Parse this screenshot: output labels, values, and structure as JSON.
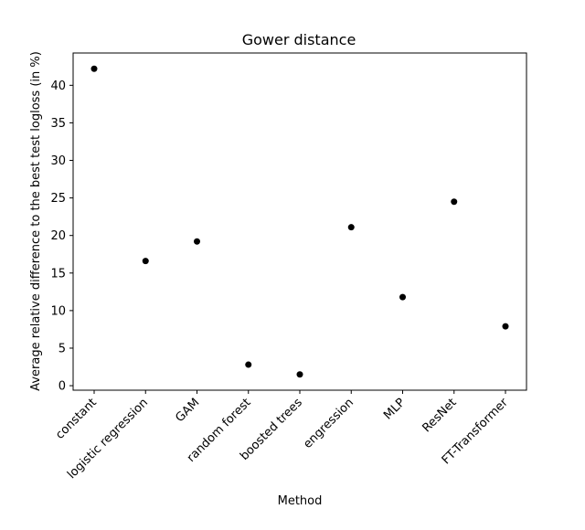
{
  "chart_data": {
    "type": "scatter",
    "title": "Gower distance",
    "xlabel": "Method",
    "ylabel": "Average relative difference to the best test logloss (in %)",
    "categories": [
      "constant",
      "logistic regression",
      "GAM",
      "random forest",
      "boosted trees",
      "engression",
      "MLP",
      "ResNet",
      "FT-Transformer"
    ],
    "values": [
      42.2,
      16.6,
      19.2,
      2.8,
      1.5,
      21.1,
      11.8,
      24.5,
      7.9
    ],
    "yticks": [
      0,
      5,
      10,
      15,
      20,
      25,
      30,
      35,
      40
    ],
    "ylim": [
      -0.6,
      44.3
    ],
    "grid": false,
    "marker_color": "#000000"
  }
}
